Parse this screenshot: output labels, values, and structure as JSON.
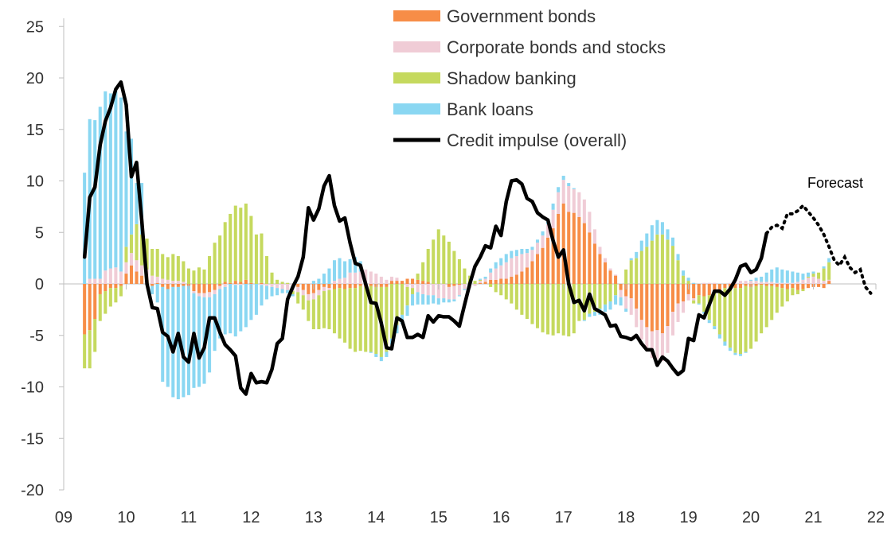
{
  "chart_data": {
    "type": "bar",
    "title": "",
    "xlabel": "",
    "ylabel": "",
    "ylim": [
      -20,
      25
    ],
    "yticks": [
      25,
      20,
      15,
      10,
      5,
      0,
      -5,
      -10,
      -15,
      -20
    ],
    "xticks": [
      "09",
      "10",
      "11",
      "12",
      "13",
      "14",
      "15",
      "16",
      "17",
      "18",
      "19",
      "20",
      "21",
      "22"
    ],
    "xlim": [
      2009,
      2022
    ],
    "legend_position": "top-center",
    "annotation": "Forecast",
    "series": [
      {
        "name": "Government bonds",
        "color": "#F78D47",
        "values": [
          -4.9,
          -4.5,
          -3.4,
          -1.0,
          -0.7,
          -0.4,
          -0.4,
          -0.2,
          1.0,
          1.8,
          1.2,
          0.8,
          0.4,
          -0.2,
          0.1,
          -0.3,
          -0.5,
          -0.3,
          -0.3,
          -0.2,
          -0.2,
          -0.7,
          -0.9,
          -0.9,
          -0.8,
          -0.6,
          -0.2,
          0.2,
          0.1,
          0.3,
          0.2,
          0.4,
          0.1,
          0.0,
          0.1,
          0.0,
          0.0,
          0.0,
          0.0,
          0.0,
          0.0,
          -0.3,
          -0.6,
          -1.0,
          -0.9,
          -0.6,
          -0.3,
          -0.4,
          -0.5,
          -0.4,
          -0.5,
          -0.4,
          -0.4,
          -0.2,
          -0.3,
          -0.2,
          -0.3,
          -0.3,
          -0.3,
          0.3,
          0.3,
          0.3,
          0.5,
          0.5,
          0.4,
          0.3,
          0.2,
          0.0,
          0.0,
          0.0,
          -0.3,
          -0.2,
          -0.1,
          0.0,
          0.0,
          0.0,
          0.1,
          0.2,
          0.4,
          0.4,
          0.5,
          0.5,
          0.7,
          0.9,
          1.2,
          1.6,
          2.2,
          2.9,
          3.5,
          4.5,
          5.4,
          6.8,
          7.8,
          7.0,
          6.9,
          6.5,
          5.9,
          5.0,
          3.9,
          2.9,
          2.1,
          1.3,
          0.8,
          -0.6,
          -1.2,
          -1.4,
          -2.4,
          -3.5,
          -4.2,
          -4.6,
          -4.5,
          -4.8,
          -4.1,
          -2.7,
          -1.9,
          -1.7,
          -1.0,
          -1.4,
          -1.1,
          -1.2,
          -1.1,
          -0.8,
          -0.6,
          -0.4,
          -0.3,
          -0.4,
          -0.4,
          -0.2,
          -0.3,
          -0.2,
          -0.1,
          -0.2,
          -0.2,
          -0.3,
          -0.4,
          -0.5,
          -0.4,
          -0.6,
          -0.5,
          -0.4,
          -0.3,
          -0.3,
          -0.4,
          0.3
        ]
      },
      {
        "name": "Corporate bonds and stocks",
        "color": "#F0CCD6",
        "values": [
          0.0,
          0.5,
          0.5,
          0.5,
          1.3,
          1.5,
          1.6,
          1.2,
          1.1,
          1.2,
          1.1,
          1.0,
          1.0,
          0.8,
          0.6,
          0.5,
          0.4,
          0.3,
          0.3,
          0.2,
          0.0,
          -0.2,
          -0.3,
          -0.4,
          -0.5,
          -0.4,
          -0.3,
          -0.3,
          0.0,
          -0.1,
          -0.1,
          0.0,
          0.0,
          0.0,
          -0.1,
          -0.2,
          -0.3,
          -0.4,
          -0.5,
          -0.6,
          -0.7,
          -0.5,
          -0.5,
          -0.6,
          -0.6,
          -0.5,
          -0.4,
          -0.2,
          0.3,
          0.5,
          0.6,
          1.1,
          1.1,
          1.2,
          1.4,
          1.2,
          1.0,
          0.7,
          0.4,
          0.4,
          0.3,
          0.0,
          -0.3,
          -0.4,
          -0.8,
          -1.0,
          -1.1,
          -1.1,
          -1.4,
          -1.4,
          -1.2,
          -1.3,
          -1.0,
          -0.5,
          -0.4,
          -0.2,
          0.2,
          0.3,
          0.7,
          1.1,
          1.3,
          1.6,
          1.8,
          1.8,
          1.7,
          1.4,
          1.1,
          1.1,
          1.2,
          1.3,
          1.8,
          2.1,
          2.3,
          2.5,
          2.3,
          2.4,
          2.3,
          2.0,
          1.4,
          0.7,
          0.4,
          0.2,
          0.1,
          -0.7,
          -1.2,
          -1.6,
          -1.8,
          -1.9,
          -2.2,
          -2.6,
          -2.8,
          -2.7,
          -2.6,
          -2.3,
          -1.8,
          -1.1,
          -0.6,
          -0.2,
          0.0,
          0.1,
          0.1,
          0.1,
          0.0,
          0.0,
          0.1,
          0.2,
          0.3,
          0.3,
          0.3,
          0.3,
          0.2,
          0.2,
          0.2,
          0.1,
          0.1,
          0.1,
          0.1,
          0.2,
          0.4,
          0.6,
          0.7,
          0.5,
          0.3,
          0.1,
          0.0
        ]
      },
      {
        "name": "Shadow banking",
        "color": "#C5D95E",
        "values": [
          -3.3,
          -3.7,
          -3.2,
          -2.6,
          -2.2,
          -1.8,
          -1.4,
          -1.0,
          1.5,
          1.8,
          3.5,
          3.0,
          3.0,
          2.6,
          2.7,
          2.4,
          2.2,
          2.6,
          2.4,
          2.0,
          1.5,
          1.3,
          1.6,
          1.4,
          2.7,
          4.0,
          4.7,
          5.8,
          6.7,
          7.3,
          7.2,
          7.4,
          6.5,
          4.8,
          4.8,
          2.7,
          1.1,
          0.4,
          0.2,
          0.1,
          -0.3,
          -1.1,
          -1.4,
          -2.0,
          -2.9,
          -3.3,
          -3.6,
          -3.8,
          -4.3,
          -4.9,
          -5.2,
          -5.9,
          -6.2,
          -6.3,
          -6.3,
          -6.4,
          -6.5,
          -6.8,
          -6.3,
          -5.3,
          -4.0,
          -3.0,
          -1.8,
          -0.6,
          0.6,
          1.8,
          3.2,
          4.3,
          5.3,
          4.7,
          4.1,
          3.2,
          2.4,
          1.5,
          0.8,
          0.3,
          0.1,
          0.0,
          -0.3,
          -0.8,
          -1.1,
          -1.5,
          -1.9,
          -2.5,
          -3.0,
          -3.4,
          -3.9,
          -4.3,
          -4.7,
          -4.9,
          -5.0,
          -4.8,
          -5.0,
          -5.1,
          -4.8,
          -3.6,
          -3.5,
          -2.9,
          -2.7,
          -2.4,
          -2.0,
          -1.7,
          -1.1,
          0.0,
          1.4,
          2.3,
          2.5,
          3.2,
          3.6,
          4.2,
          4.8,
          4.8,
          4.3,
          3.7,
          2.3,
          0.8,
          0.3,
          -0.3,
          -0.8,
          -1.5,
          -2.4,
          -3.3,
          -4.3,
          -5.2,
          -5.9,
          -6.3,
          -6.4,
          -6.4,
          -6.0,
          -5.4,
          -4.7,
          -4.0,
          -3.3,
          -2.5,
          -1.8,
          -1.2,
          -0.7,
          -0.4,
          -0.2,
          0.1,
          0.3,
          0.6,
          1.2,
          1.7,
          2.0,
          2.0
        ]
      },
      {
        "name": "Bank loans",
        "color": "#8AD7F2",
        "values": [
          10.8,
          15.5,
          15.4,
          16.7,
          17.4,
          17.0,
          17.1,
          16.9,
          11.2,
          9.3,
          4.0,
          5.0,
          0.0,
          -0.8,
          -1.8,
          -9.2,
          -9.5,
          -10.7,
          -10.9,
          -10.8,
          -10.6,
          -9.2,
          -8.8,
          -8.4,
          -7.3,
          -5.5,
          -4.8,
          -4.6,
          -4.8,
          -5.0,
          -4.5,
          -4.2,
          -3.5,
          -3.0,
          -2.0,
          -1.3,
          -0.9,
          -0.7,
          -0.4,
          -0.3,
          -0.2,
          0.0,
          0.0,
          0.0,
          0.3,
          0.5,
          1.0,
          1.5,
          2.0,
          2.0,
          1.6,
          1.3,
          1.5,
          1.0,
          0.0,
          -0.1,
          -0.3,
          -0.4,
          -0.5,
          -0.6,
          -0.8,
          -0.9,
          -1.0,
          -1.1,
          -1.2,
          -1.0,
          -0.9,
          -0.8,
          -0.6,
          -0.4,
          -0.3,
          -0.2,
          -0.1,
          -0.1,
          0.0,
          0.0,
          0.1,
          0.2,
          0.4,
          0.6,
          0.7,
          0.8,
          0.7,
          0.6,
          0.5,
          0.4,
          0.3,
          0.3,
          0.4,
          0.5,
          0.6,
          0.5,
          0.4,
          0.3,
          0.1,
          0.0,
          -0.1,
          -0.3,
          -0.4,
          -0.6,
          -0.7,
          -0.8,
          -0.9,
          -0.8,
          -0.3,
          0.2,
          0.6,
          1.0,
          1.3,
          1.5,
          1.4,
          1.2,
          1.0,
          0.8,
          0.6,
          0.5,
          0.3,
          0.1,
          -0.1,
          -0.2,
          -0.3,
          -0.3,
          -0.4,
          -0.4,
          -0.3,
          -0.2,
          -0.2,
          -0.1,
          0.1,
          0.3,
          0.5,
          0.9,
          1.2,
          1.5,
          1.3,
          1.2,
          1.1,
          0.9,
          0.6,
          0.4,
          0.2,
          0.0,
          0.2,
          0.4,
          1.2,
          2.0
        ]
      }
    ],
    "line": {
      "name": "Credit impulse (overall)",
      "color": "#000000",
      "values": [
        2.6,
        8.4,
        9.4,
        13.5,
        15.8,
        17.1,
        18.9,
        19.6,
        17.4,
        10.4,
        11.8,
        6.1,
        0.0,
        -2.3,
        -2.4,
        -4.7,
        -5.1,
        -6.6,
        -4.8,
        -7.1,
        -7.6,
        -4.8,
        -7.2,
        -6.2,
        -3.3,
        -3.3,
        -4.7,
        -5.9,
        -6.4,
        -7.0,
        -10.1,
        -10.7,
        -8.7,
        -9.6,
        -9.5,
        -9.6,
        -8.3,
        -5.8,
        -5.3,
        -1.5,
        -0.3,
        0.7,
        2.6,
        7.4,
        6.2,
        7.3,
        9.5,
        10.5,
        7.6,
        6.1,
        6.4,
        4.0,
        2.0,
        1.8,
        0.0,
        -1.8,
        -1.9,
        -3.8,
        -6.2,
        -6.3,
        -3.3,
        -3.6,
        -5.2,
        -5.2,
        -4.9,
        -5.2,
        -3.1,
        -3.7,
        -3.1,
        -3.2,
        -3.2,
        -3.6,
        -4.1,
        -2.0,
        0.0,
        1.7,
        2.6,
        3.7,
        3.5,
        5.6,
        4.7,
        8.0,
        10.0,
        10.1,
        9.7,
        8.3,
        8.0,
        6.9,
        6.5,
        6.2,
        4.2,
        2.6,
        3.3,
        0.0,
        -1.8,
        -1.6,
        -2.6,
        -1.0,
        -2.4,
        -2.7,
        -3.0,
        -4.1,
        -4.0,
        -5.1,
        -5.2,
        -5.4,
        -5.0,
        -5.8,
        -6.4,
        -6.4,
        -7.9,
        -7.1,
        -7.5,
        -8.2,
        -8.8,
        -8.4,
        -5.3,
        -5.5,
        -3.0,
        -3.3,
        -2.0,
        -0.7,
        -0.7,
        -1.1,
        -0.5,
        0.4,
        1.7,
        1.9,
        1.1,
        1.4,
        2.5,
        4.9
      ],
      "forecast_values": [
        5.5,
        5.7,
        5.4,
        6.8,
        6.8,
        7.1,
        7.6,
        7.0,
        6.4,
        5.7,
        4.8,
        3.6,
        2.3,
        1.8,
        2.6,
        1.6,
        1.1,
        1.4,
        -0.3,
        -0.9
      ]
    }
  }
}
